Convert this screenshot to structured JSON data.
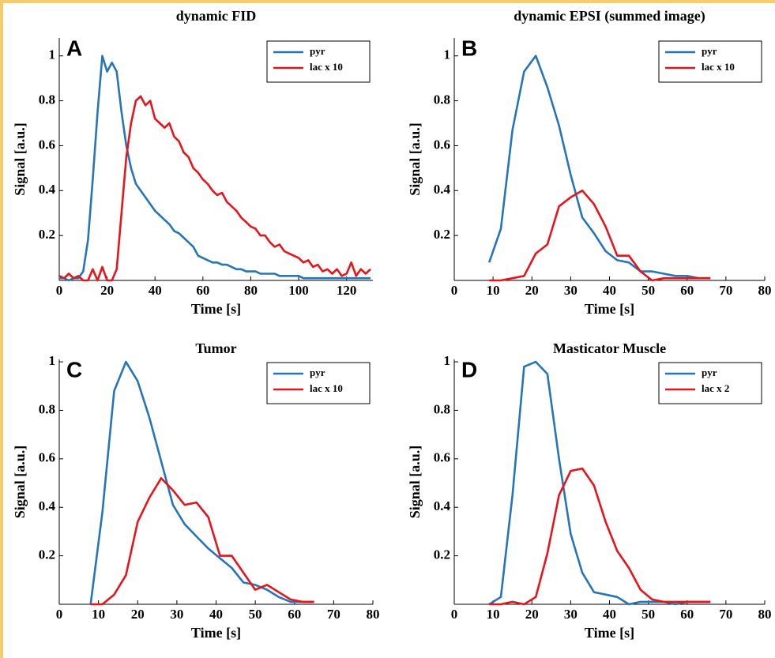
{
  "chart_data": [
    {
      "type": "line",
      "panel_label": "A",
      "title": "dynamic  FID",
      "x_label": "Time [s]",
      "y_label": "Signal [a.u.]",
      "xlim": [
        0,
        131
      ],
      "xticks": [
        0,
        20,
        40,
        60,
        80,
        100,
        120
      ],
      "ylim": [
        0,
        1.08
      ],
      "yticks": [
        0.2,
        0.4,
        0.6,
        0.8,
        1
      ],
      "legend": "upper right",
      "x": [
        0,
        2,
        4,
        6,
        8,
        10,
        12,
        14,
        16,
        18,
        20,
        22,
        24,
        26,
        28,
        30,
        32,
        34,
        36,
        38,
        40,
        42,
        44,
        46,
        48,
        50,
        52,
        54,
        56,
        58,
        60,
        62,
        64,
        66,
        68,
        70,
        72,
        74,
        76,
        78,
        80,
        82,
        84,
        86,
        88,
        90,
        92,
        94,
        96,
        98,
        100,
        102,
        104,
        106,
        108,
        110,
        112,
        114,
        116,
        118,
        120,
        122,
        124,
        126,
        128,
        130
      ],
      "series": [
        {
          "name": "pyr",
          "color": "#2575b8",
          "values": [
            0.01,
            0.01,
            0,
            0.01,
            0.01,
            0.04,
            0.18,
            0.45,
            0.75,
            1.0,
            0.93,
            0.97,
            0.93,
            0.75,
            0.6,
            0.5,
            0.43,
            0.4,
            0.37,
            0.34,
            0.31,
            0.29,
            0.27,
            0.25,
            0.22,
            0.21,
            0.19,
            0.17,
            0.15,
            0.11,
            0.1,
            0.09,
            0.08,
            0.08,
            0.07,
            0.07,
            0.06,
            0.05,
            0.05,
            0.04,
            0.04,
            0.04,
            0.03,
            0.03,
            0.03,
            0.03,
            0.02,
            0.02,
            0.02,
            0.02,
            0.02,
            0.01,
            0.01,
            0.01,
            0.01,
            0.01,
            0.01,
            0.01,
            0.01,
            0.01,
            0.01,
            0.01,
            0.01,
            0.01,
            0.01,
            0.01
          ]
        },
        {
          "name": "lac x 10",
          "color": "#e8141b",
          "values": [
            0.02,
            0.01,
            0.03,
            0.01,
            0.02,
            0,
            0,
            0.05,
            0,
            0.06,
            0,
            0,
            0.05,
            0.3,
            0.55,
            0.7,
            0.8,
            0.82,
            0.78,
            0.8,
            0.72,
            0.7,
            0.68,
            0.7,
            0.64,
            0.62,
            0.57,
            0.55,
            0.5,
            0.48,
            0.45,
            0.43,
            0.4,
            0.38,
            0.39,
            0.35,
            0.33,
            0.31,
            0.28,
            0.26,
            0.24,
            0.23,
            0.2,
            0.2,
            0.17,
            0.15,
            0.16,
            0.13,
            0.12,
            0.11,
            0.1,
            0.08,
            0.09,
            0.06,
            0.07,
            0.04,
            0.05,
            0.03,
            0.05,
            0.02,
            0.03,
            0.08,
            0.02,
            0.05,
            0.03,
            0.05
          ]
        }
      ]
    },
    {
      "type": "line",
      "panel_label": "B",
      "title": "dynamic EPSI (summed image)",
      "x_label": "Time [s]",
      "y_label": "Signal [a.u.]",
      "xlim": [
        0,
        80
      ],
      "xticks": [
        0,
        10,
        20,
        30,
        40,
        50,
        60,
        70,
        80
      ],
      "ylim": [
        0,
        1.08
      ],
      "yticks": [
        0.2,
        0.4,
        0.6,
        0.8,
        1
      ],
      "legend": "upper right",
      "x": [
        9,
        12,
        15,
        18,
        21,
        24,
        27,
        30,
        33,
        36,
        39,
        42,
        45,
        48,
        51,
        54,
        57,
        60,
        63,
        66
      ],
      "series": [
        {
          "name": "pyr",
          "color": "#2575b8",
          "values": [
            0.08,
            0.23,
            0.67,
            0.93,
            1.0,
            0.86,
            0.69,
            0.47,
            0.28,
            0.21,
            0.13,
            0.09,
            0.08,
            0.04,
            0.04,
            0.03,
            0.02,
            0.02,
            0.01,
            0.01
          ]
        },
        {
          "name": "lac x 10",
          "color": "#e8141b",
          "values": [
            0,
            0,
            0.01,
            0.02,
            0.12,
            0.16,
            0.33,
            0.37,
            0.4,
            0.34,
            0.24,
            0.11,
            0.11,
            0.04,
            0,
            0.01,
            0.01,
            0.01,
            0.01,
            0.01
          ]
        }
      ]
    },
    {
      "type": "line",
      "panel_label": "C",
      "title": "Tumor",
      "x_label": "Time [s]",
      "y_label": "Signal [a.u.]",
      "xlim": [
        0,
        80
      ],
      "xticks": [
        0,
        10,
        20,
        30,
        40,
        50,
        60,
        70,
        80
      ],
      "ylim": [
        0,
        1.01
      ],
      "yticks": [
        0.2,
        0.4,
        0.6,
        0.8,
        1
      ],
      "legend": "upper right",
      "x": [
        8,
        11,
        14,
        17,
        20,
        23,
        26,
        29,
        32,
        35,
        38,
        41,
        44,
        47,
        50,
        53,
        56,
        59,
        62,
        65
      ],
      "series": [
        {
          "name": "pyr",
          "color": "#2575b8",
          "values": [
            0,
            0.38,
            0.88,
            1.0,
            0.92,
            0.77,
            0.59,
            0.41,
            0.33,
            0.28,
            0.23,
            0.19,
            0.15,
            0.09,
            0.08,
            0.06,
            0.03,
            0.01,
            0.01,
            0.01
          ]
        },
        {
          "name": "lac x 10",
          "color": "#e8141b",
          "values": [
            0,
            0,
            0.04,
            0.12,
            0.34,
            0.44,
            0.52,
            0.47,
            0.41,
            0.42,
            0.36,
            0.2,
            0.2,
            0.13,
            0.06,
            0.08,
            0.05,
            0.02,
            0.01,
            0.01
          ]
        }
      ]
    },
    {
      "type": "line",
      "panel_label": "D",
      "title": "Masticator Muscle",
      "x_label": "Time [s]",
      "y_label": "Signal [a.u.]",
      "xlim": [
        0,
        80
      ],
      "xticks": [
        0,
        10,
        20,
        30,
        40,
        50,
        60,
        70,
        80
      ],
      "ylim": [
        0,
        1.01
      ],
      "yticks": [
        0.2,
        0.4,
        0.6,
        0.8,
        1
      ],
      "legend": "upper right",
      "x": [
        9,
        12,
        15,
        18,
        21,
        24,
        27,
        30,
        33,
        36,
        39,
        42,
        45,
        48,
        51,
        54,
        57,
        60,
        63,
        66
      ],
      "series": [
        {
          "name": "pyr",
          "color": "#2575b8",
          "values": [
            0,
            0.03,
            0.45,
            0.98,
            1.0,
            0.95,
            0.6,
            0.29,
            0.13,
            0.05,
            0.04,
            0.03,
            0,
            0.01,
            0.01,
            0.01,
            0,
            0.01,
            0.01,
            0.01
          ]
        },
        {
          "name": "lac x 2",
          "color": "#e8141b",
          "values": [
            0,
            0,
            0.01,
            0,
            0.03,
            0.21,
            0.45,
            0.55,
            0.56,
            0.49,
            0.34,
            0.22,
            0.15,
            0.06,
            0.02,
            0.01,
            0.01,
            0.01,
            0.01,
            0.01
          ]
        }
      ]
    }
  ]
}
